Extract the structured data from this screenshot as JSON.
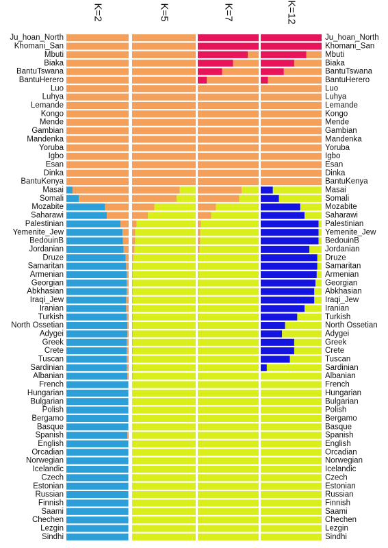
{
  "chart_data": {
    "type": "stacked-bar",
    "orientation": "horizontal",
    "panels": [
      "K=2",
      "K=5",
      "K=7",
      "K=12"
    ],
    "colors": {
      "african": "#f5a05a",
      "out_of_africa": "#2d9fd8",
      "eurasian": "#d9ee1a",
      "hunter_gatherer": "#e8145a",
      "middle_east": "#1414e0",
      "caucasus": "#ee34d8",
      "north_asia": "#28c828",
      "south_asia": "#7a1078",
      "east_asia": "#1e8e8e"
    },
    "populations": [
      "Ju_hoan_North",
      "Khomani_San",
      "Mbuti",
      "Biaka",
      "BantuTswana",
      "BantuHerero",
      "Luo",
      "Luhya",
      "Lemande",
      "Kongo",
      "Mende",
      "Gambian",
      "Mandenka",
      "Yoruba",
      "Igbo",
      "Esan",
      "Dinka",
      "BantuKenya",
      "Masai",
      "Somali",
      "Mozabite",
      "Saharawi",
      "Palestinian",
      "Yemenite_Jew",
      "BedouinB",
      "Jordanian",
      "Druze",
      "Samaritan",
      "Armenian",
      "Georgian",
      "Abkhasian",
      "Iraqi_Jew",
      "Iranian",
      "Turkish",
      "North_Ossetian",
      "Adygei",
      "Greek",
      "Crete",
      "Tuscan",
      "Sardinian",
      "Albanian",
      "French",
      "Hungarian",
      "Bulgarian",
      "Polish",
      "Bergamo",
      "Basque",
      "Spanish",
      "English",
      "Orcadian",
      "Norwegian",
      "Icelandic",
      "Czech",
      "Estonian",
      "Russian",
      "Finnish",
      "Saami",
      "Chechen",
      "Lezgin",
      "Sindhi"
    ],
    "left_labels": [
      "Ju_hoan_North",
      "Khomani_San",
      "Mbuti",
      "Biaka",
      "BantuTswana",
      "BantuHerero",
      "Luo",
      "Luhya",
      "Lemande",
      "Kongo",
      "Mende",
      "Gambian",
      "Mandenka",
      "Yoruba",
      "Igbo",
      "Esan",
      "Dinka",
      "BantuKenya",
      "Masai",
      "Somali",
      "Mozabite",
      "Saharawi",
      "Palestinian",
      "Yemenite_Jew",
      "BedouinB",
      "Jordanian",
      "Druze",
      "Samaritan",
      "Armenian",
      "Georgian",
      "Abkhasian",
      "Iraqi_Jew",
      "Iranian",
      "Turkish",
      "North  Ossetian",
      "Adygei",
      "Greek",
      "Crete",
      "Tuscan",
      "Sardinian",
      "Albanian",
      "French",
      "Hungarian",
      "Bulgarian",
      "Polish",
      "Bergamo",
      "Basque",
      "Spanish",
      "English",
      "Orcadian",
      "Norwegian",
      "Icelandic",
      "Czech",
      "Estonian",
      "Russian",
      "Finnish",
      "Saami",
      "Chechen",
      "Lezgin",
      "Sindhi"
    ],
    "right_labels": [
      "Ju_hoan_North",
      "Khomani_San",
      "Mbuti",
      "Biaka",
      "BantuTswana",
      "BantuHerero",
      "Luo",
      "Luhya",
      "Lemande",
      "Kongo",
      "Mende",
      "Gambian",
      "Mandenka",
      "Yoruba",
      "Igbo",
      "Esan",
      "Dinka",
      "BantuKenya",
      "Masai",
      "Somali",
      "Mozabite",
      "Saharawi",
      "Palestinian",
      "Yemenite_Jew",
      "BedouinB",
      "Jordanian",
      "Druze",
      "Samaritan",
      "Armenian",
      "Georgian",
      "Abkhasian",
      "Iraqi_Jew",
      "Iranian",
      "Turkish",
      "North  Ossetian",
      "Adygei",
      "Greek",
      "Crete",
      "Tuscan",
      "Sardinian",
      "Albanian",
      "French",
      "Hungarian",
      "Bulgarian",
      "Polish",
      "Bergamo",
      "Basque",
      "Spanish",
      "English",
      "Orcadian",
      "Norwegian",
      "Icelandic",
      "Czech",
      "Estonian",
      "Russian",
      "Finnish",
      "Saami",
      "Chechen",
      "Lezgin",
      "Sindhi"
    ],
    "K2": {
      "components": [
        "out_of_africa",
        "african"
      ],
      "out_of_africa": [
        0,
        0,
        0,
        0,
        0,
        0,
        0,
        0,
        0,
        0,
        0,
        0,
        0,
        0,
        0,
        0,
        0,
        0,
        0.1,
        0.2,
        0.62,
        0.65,
        0.87,
        0.9,
        0.91,
        0.92,
        0.95,
        0.96,
        0.97,
        0.97,
        0.97,
        0.96,
        0.96,
        0.97,
        0.98,
        0.98,
        0.97,
        0.97,
        0.97,
        0.97,
        0.98,
        0.99,
        0.99,
        0.99,
        0.99,
        0.99,
        0.99,
        0.98,
        0.99,
        0.99,
        0.99,
        0.99,
        0.99,
        0.99,
        0.99,
        0.99,
        0.99,
        0.99,
        0.99,
        0.99
      ]
    },
    "K5": {
      "components": [
        "african",
        "eurasian"
      ],
      "african": [
        1,
        1,
        1,
        1,
        1,
        1,
        1,
        1,
        1,
        1,
        1,
        1,
        1,
        1,
        1,
        1,
        1,
        1,
        0.75,
        0.7,
        0.35,
        0.25,
        0.07,
        0.05,
        0.05,
        0.04,
        0.02,
        0.01,
        0.01,
        0.01,
        0.01,
        0.01,
        0.01,
        0.01,
        0.01,
        0.01,
        0.01,
        0.01,
        0.01,
        0.01,
        0.01,
        0,
        0,
        0,
        0,
        0,
        0,
        0,
        0,
        0,
        0,
        0,
        0,
        0,
        0,
        0,
        0,
        0,
        0,
        0
      ]
    },
    "K7": {
      "components": [
        "hunter_gatherer",
        "african",
        "eurasian"
      ],
      "hunter_gatherer": [
        1,
        1,
        0.82,
        0.58,
        0.4,
        0.15,
        0,
        0,
        0,
        0,
        0,
        0,
        0,
        0,
        0,
        0,
        0,
        0,
        0,
        0,
        0,
        0,
        0,
        0,
        0,
        0,
        0,
        0,
        0,
        0,
        0,
        0,
        0,
        0,
        0,
        0,
        0,
        0,
        0,
        0,
        0,
        0,
        0,
        0,
        0,
        0,
        0,
        0,
        0,
        0,
        0,
        0,
        0,
        0,
        0,
        0,
        0,
        0,
        0,
        0
      ],
      "african": [
        0,
        0,
        0.18,
        0.42,
        0.6,
        0.85,
        1,
        1,
        1,
        1,
        1,
        1,
        1,
        1,
        1,
        1,
        1,
        1,
        0.72,
        0.68,
        0.3,
        0.22,
        0.05,
        0.04,
        0.04,
        0.03,
        0.01,
        0.01,
        0.01,
        0.01,
        0.01,
        0.01,
        0.01,
        0.01,
        0.01,
        0,
        0,
        0,
        0,
        0,
        0,
        0,
        0,
        0,
        0,
        0,
        0,
        0,
        0,
        0,
        0,
        0,
        0,
        0,
        0,
        0,
        0,
        0,
        0,
        0
      ]
    },
    "K12": {
      "components": [
        "hunter_gatherer",
        "african",
        "middle_east",
        "caucasus",
        "eurasian"
      ],
      "hunter_gatherer": [
        1,
        1,
        0.75,
        0.55,
        0.38,
        0.12,
        0,
        0,
        0,
        0,
        0,
        0,
        0,
        0,
        0,
        0,
        0,
        0,
        0,
        0,
        0,
        0,
        0,
        0,
        0,
        0,
        0,
        0,
        0,
        0,
        0,
        0,
        0,
        0,
        0,
        0,
        0,
        0,
        0,
        0,
        0,
        0,
        0,
        0,
        0,
        0,
        0,
        0,
        0,
        0,
        0,
        0,
        0,
        0,
        0,
        0,
        0,
        0,
        0,
        0
      ],
      "middle_east": [
        0,
        0,
        0,
        0,
        0,
        0,
        0,
        0,
        0,
        0,
        0,
        0,
        0,
        0,
        0,
        0,
        0,
        0,
        0.2,
        0.3,
        0.65,
        0.72,
        0.95,
        0.95,
        0.95,
        0.8,
        0.93,
        0.93,
        0.92,
        0.9,
        0.88,
        0.88,
        0.72,
        0.6,
        0.4,
        0.35,
        0.55,
        0.55,
        0.48,
        0.1,
        0,
        0,
        0,
        0,
        0,
        0,
        0,
        0,
        0,
        0,
        0,
        0,
        0,
        0,
        0,
        0,
        0,
        0,
        0,
        0
      ]
    }
  }
}
